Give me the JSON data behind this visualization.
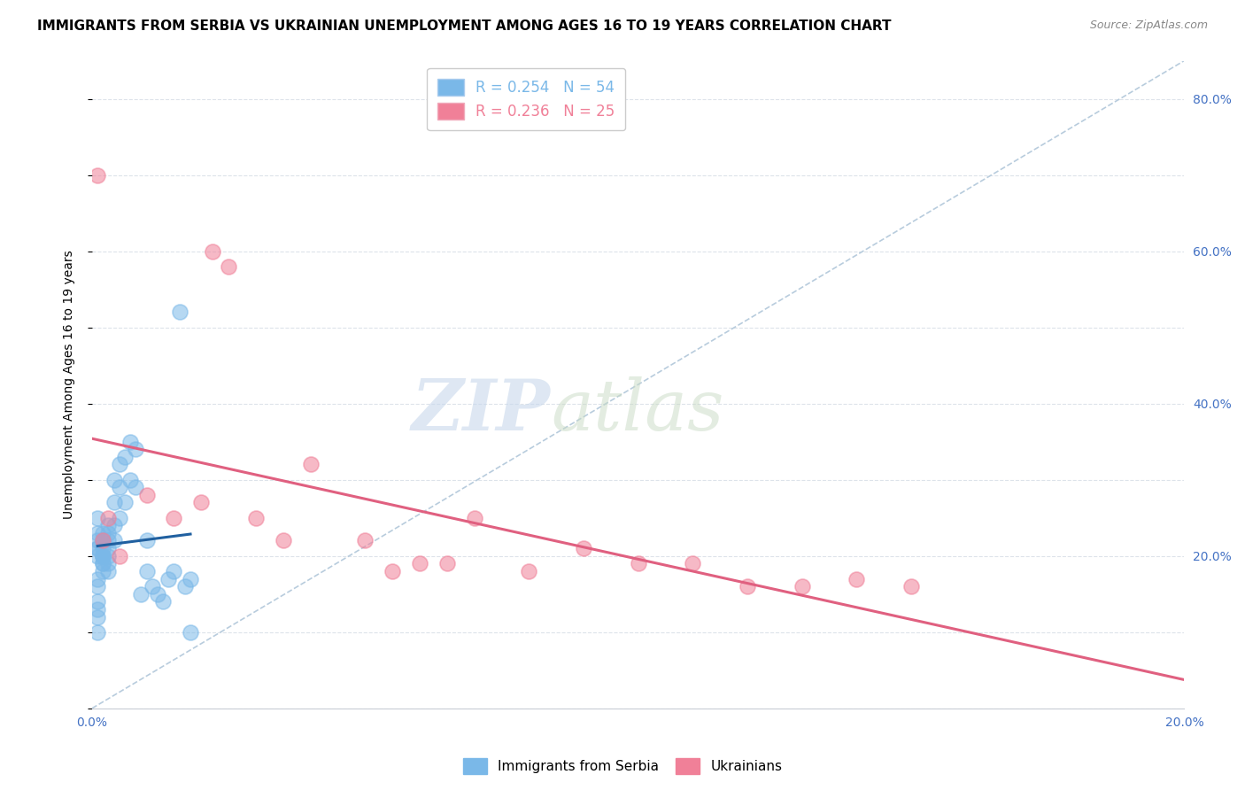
{
  "title": "IMMIGRANTS FROM SERBIA VS UKRAINIAN UNEMPLOYMENT AMONG AGES 16 TO 19 YEARS CORRELATION CHART",
  "source": "Source: ZipAtlas.com",
  "ylabel": "Unemployment Among Ages 16 to 19 years",
  "x_min": 0.0,
  "x_max": 0.2,
  "y_min": 0.0,
  "y_max": 0.85,
  "right_yticks": [
    0.0,
    0.2,
    0.4,
    0.6,
    0.8
  ],
  "right_yticklabels": [
    "",
    "20.0%",
    "40.0%",
    "60.0%",
    "80.0%"
  ],
  "bottom_xticks": [
    0.0,
    0.04,
    0.08,
    0.12,
    0.16,
    0.2
  ],
  "bottom_xticklabels": [
    "0.0%",
    "",
    "",
    "",
    "",
    "20.0%"
  ],
  "legend_entries": [
    {
      "label": "R = 0.254   N = 54",
      "color": "#7ab8e8"
    },
    {
      "label": "R = 0.236   N = 25",
      "color": "#f08098"
    }
  ],
  "serbia_x": [
    0.001,
    0.001,
    0.001,
    0.001,
    0.001,
    0.002,
    0.002,
    0.002,
    0.002,
    0.002,
    0.002,
    0.003,
    0.003,
    0.003,
    0.003,
    0.003,
    0.004,
    0.004,
    0.004,
    0.004,
    0.005,
    0.005,
    0.005,
    0.006,
    0.006,
    0.007,
    0.007,
    0.008,
    0.008,
    0.009,
    0.01,
    0.01,
    0.011,
    0.012,
    0.013,
    0.014,
    0.015,
    0.016,
    0.017,
    0.018,
    0.002,
    0.001,
    0.001,
    0.002,
    0.003,
    0.002,
    0.003,
    0.001,
    0.002,
    0.001,
    0.001,
    0.001,
    0.001,
    0.018
  ],
  "serbia_y": [
    0.21,
    0.23,
    0.25,
    0.22,
    0.2,
    0.2,
    0.22,
    0.23,
    0.21,
    0.22,
    0.19,
    0.22,
    0.24,
    0.2,
    0.23,
    0.21,
    0.22,
    0.27,
    0.3,
    0.24,
    0.25,
    0.29,
    0.32,
    0.27,
    0.33,
    0.3,
    0.35,
    0.29,
    0.34,
    0.15,
    0.22,
    0.18,
    0.16,
    0.15,
    0.14,
    0.17,
    0.18,
    0.52,
    0.16,
    0.17,
    0.18,
    0.17,
    0.16,
    0.19,
    0.18,
    0.2,
    0.19,
    0.21,
    0.2,
    0.14,
    0.13,
    0.12,
    0.1,
    0.1
  ],
  "ukraine_x": [
    0.001,
    0.002,
    0.003,
    0.005,
    0.01,
    0.015,
    0.02,
    0.022,
    0.025,
    0.03,
    0.035,
    0.04,
    0.05,
    0.055,
    0.06,
    0.065,
    0.07,
    0.08,
    0.09,
    0.1,
    0.11,
    0.12,
    0.13,
    0.14,
    0.15
  ],
  "ukraine_y": [
    0.7,
    0.22,
    0.25,
    0.2,
    0.28,
    0.25,
    0.27,
    0.6,
    0.58,
    0.25,
    0.22,
    0.32,
    0.22,
    0.18,
    0.19,
    0.19,
    0.25,
    0.18,
    0.21,
    0.19,
    0.19,
    0.16,
    0.16,
    0.17,
    0.16
  ],
  "serbia_color": "#7ab8e8",
  "ukraine_color": "#f08098",
  "serbia_line_color": "#2060a0",
  "ukraine_line_color": "#e06080",
  "diagonal_color": "#b8ccdd",
  "grid_color": "#dde3ea",
  "background_color": "#ffffff",
  "watermark_zip": "ZIP",
  "watermark_atlas": "atlas",
  "title_fontsize": 11,
  "axis_label_fontsize": 10,
  "tick_fontsize": 10,
  "right_tick_color": "#4472c4",
  "bottom_tick_color": "#4472c4"
}
